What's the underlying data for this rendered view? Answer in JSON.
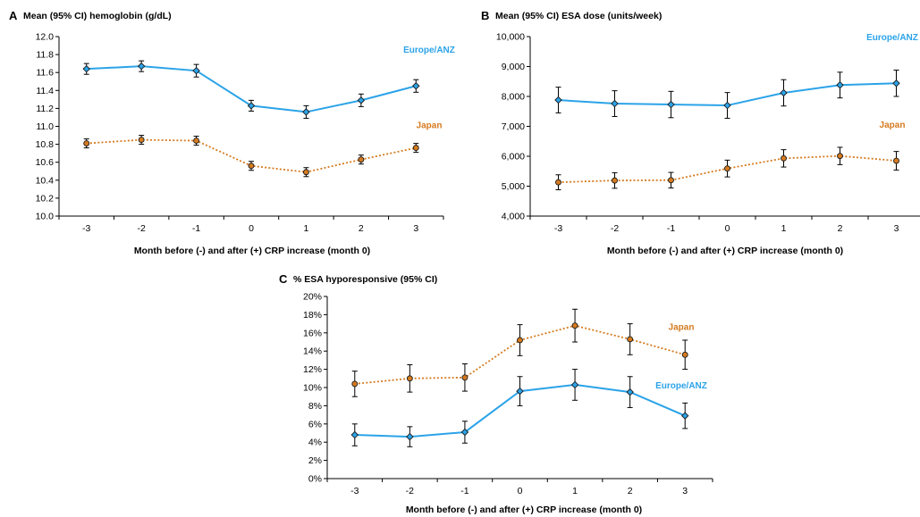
{
  "colors": {
    "europe": "#2ba3e8",
    "japan": "#d57a1f",
    "axis": "#000000",
    "errorbar": "#000000",
    "marker_edge": "#1a1a1a"
  },
  "chart_data": [
    {
      "panel": "A",
      "type": "line",
      "title": "Mean (95% CI) hemoglobin (g/dL)",
      "xlabel": "Month before (-) and after (+) CRP increase (month 0)",
      "ylabel": "",
      "x": [
        -3,
        -2,
        -1,
        0,
        1,
        2,
        3
      ],
      "x_ticks": [
        "-3",
        "-2",
        "-1",
        "0",
        "1",
        "2",
        "3"
      ],
      "ylim": [
        10.0,
        12.0
      ],
      "y_ticks": [
        "10.0",
        "10.2",
        "10.4",
        "10.6",
        "10.8",
        "11.0",
        "11.2",
        "11.4",
        "11.6",
        "11.8",
        "12.0"
      ],
      "grid": false,
      "series": [
        {
          "name": "Europe/ANZ",
          "color": "#2ba3e8",
          "style": "solid",
          "marker": "diamond",
          "values": [
            11.64,
            11.67,
            11.62,
            11.23,
            11.16,
            11.29,
            11.45
          ],
          "ci_low": [
            11.58,
            11.61,
            11.55,
            11.17,
            11.09,
            11.22,
            11.38
          ],
          "ci_high": [
            11.7,
            11.73,
            11.69,
            11.29,
            11.23,
            11.36,
            11.52
          ]
        },
        {
          "name": "Japan",
          "color": "#d57a1f",
          "style": "dotted",
          "marker": "circle",
          "values": [
            10.81,
            10.85,
            10.84,
            10.56,
            10.49,
            10.63,
            10.76
          ],
          "ci_low": [
            10.76,
            10.8,
            10.79,
            10.51,
            10.44,
            10.58,
            10.71
          ],
          "ci_high": [
            10.86,
            10.9,
            10.89,
            10.61,
            10.54,
            10.68,
            10.81
          ]
        }
      ]
    },
    {
      "panel": "B",
      "type": "line",
      "title": "Mean (95% CI) ESA dose (units/week)",
      "xlabel": "Month before (-) and after (+) CRP increase (month 0)",
      "ylabel": "",
      "x": [
        -3,
        -2,
        -1,
        0,
        1,
        2,
        3
      ],
      "x_ticks": [
        "-3",
        "-2",
        "-1",
        "0",
        "1",
        "2",
        "3"
      ],
      "ylim": [
        4000,
        10000
      ],
      "y_ticks": [
        "4,000",
        "5,000",
        "6,000",
        "7,000",
        "8,000",
        "9,000",
        "10,000"
      ],
      "grid": false,
      "series": [
        {
          "name": "Europe/ANZ",
          "color": "#2ba3e8",
          "style": "solid",
          "marker": "diamond",
          "values": [
            7880,
            7760,
            7730,
            7700,
            8120,
            8380,
            8440
          ],
          "ci_low": [
            7450,
            7330,
            7290,
            7270,
            7680,
            7950,
            8000
          ],
          "ci_high": [
            8310,
            8190,
            8170,
            8130,
            8560,
            8810,
            8880
          ]
        },
        {
          "name": "Japan",
          "color": "#d57a1f",
          "style": "dotted",
          "marker": "circle",
          "values": [
            5130,
            5190,
            5200,
            5590,
            5930,
            6010,
            5850
          ],
          "ci_low": [
            4880,
            4930,
            4940,
            5310,
            5640,
            5720,
            5540
          ],
          "ci_high": [
            5380,
            5450,
            5460,
            5870,
            6220,
            6300,
            6160
          ]
        }
      ]
    },
    {
      "panel": "C",
      "type": "line",
      "title": "% ESA hyporesponsive (95% CI)",
      "xlabel": "Month before (-) and after (+) CRP increase (month 0)",
      "ylabel": "",
      "x": [
        -3,
        -2,
        -1,
        0,
        1,
        2,
        3
      ],
      "x_ticks": [
        "-3",
        "-2",
        "-1",
        "0",
        "1",
        "2",
        "3"
      ],
      "ylim": [
        0,
        20
      ],
      "y_ticks": [
        "0%",
        "2%",
        "4%",
        "6%",
        "8%",
        "10%",
        "12%",
        "14%",
        "16%",
        "18%",
        "20%"
      ],
      "grid": false,
      "series": [
        {
          "name": "Europe/ANZ",
          "color": "#2ba3e8",
          "style": "solid",
          "marker": "diamond",
          "values": [
            4.8,
            4.6,
            5.1,
            9.6,
            10.3,
            9.5,
            6.9
          ],
          "ci_low": [
            3.6,
            3.5,
            3.9,
            8.0,
            8.6,
            7.8,
            5.5
          ],
          "ci_high": [
            6.0,
            5.7,
            6.3,
            11.2,
            12.0,
            11.2,
            8.3
          ]
        },
        {
          "name": "Japan",
          "color": "#d57a1f",
          "style": "dotted",
          "marker": "circle",
          "values": [
            10.4,
            11.0,
            11.1,
            15.2,
            16.8,
            15.3,
            13.6
          ],
          "ci_low": [
            9.0,
            9.5,
            9.6,
            13.5,
            15.0,
            13.6,
            12.0
          ],
          "ci_high": [
            11.8,
            12.5,
            12.6,
            16.9,
            18.6,
            17.0,
            15.2
          ]
        }
      ]
    }
  ]
}
